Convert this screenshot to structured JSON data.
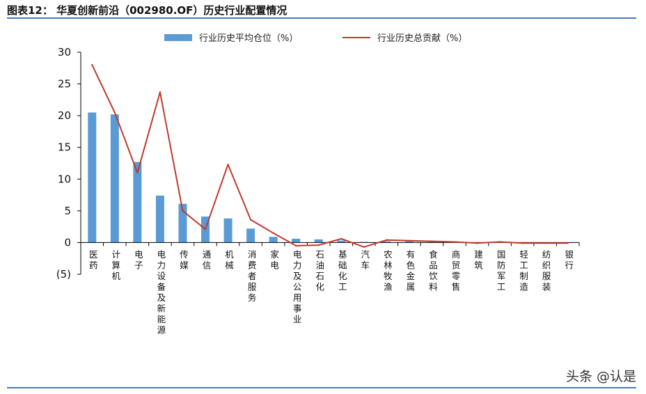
{
  "figure_title": "图表12：  华夏创新前沿（002980.OF）历史行业配置情况",
  "watermark": "头条 @认是",
  "colors": {
    "bar": "#5b9bd5",
    "line": "#c0392b",
    "rule": "#4a79b8"
  },
  "chart_data": {
    "type": "bar",
    "title": "",
    "xlabel": "",
    "ylabel": "",
    "ylim": [
      -5,
      30
    ],
    "yticks": [
      30,
      25,
      20,
      15,
      10,
      5,
      0,
      -5
    ],
    "ytick_labels": [
      "30",
      "25",
      "20",
      "15",
      "10",
      "5",
      "0",
      "(5)"
    ],
    "grid": false,
    "legend_position": "top",
    "categories": [
      "医药",
      "计算机",
      "电子",
      "电力设备及新能源",
      "传媒",
      "通信",
      "机械",
      "消费者服务",
      "家电",
      "电力及公用事业",
      "石油石化",
      "基础化工",
      "汽车",
      "农林牧渔",
      "有色金属",
      "食品饮料",
      "商贸零售",
      "建筑",
      "国防军工",
      "轻工制造",
      "纺织服装",
      "银行"
    ],
    "series": [
      {
        "name": "行业历史平均仓位（%）",
        "kind": "bar",
        "values": [
          20.5,
          20.2,
          12.7,
          7.4,
          6.1,
          4.1,
          3.8,
          2.2,
          0.9,
          0.6,
          0.5,
          0.3,
          0.1,
          0.2,
          0.2,
          0.15,
          0.1,
          0.05,
          0.05,
          0.05,
          0.05,
          0.05
        ]
      },
      {
        "name": "行业历史总贡献（%）",
        "kind": "line",
        "values": [
          28.0,
          20.5,
          11.0,
          23.7,
          5.0,
          2.1,
          12.3,
          3.6,
          1.5,
          -0.5,
          -0.4,
          0.6,
          -0.7,
          0.4,
          0.3,
          0.2,
          0.1,
          -0.1,
          0.1,
          -0.1,
          -0.1,
          -0.1
        ]
      }
    ]
  }
}
